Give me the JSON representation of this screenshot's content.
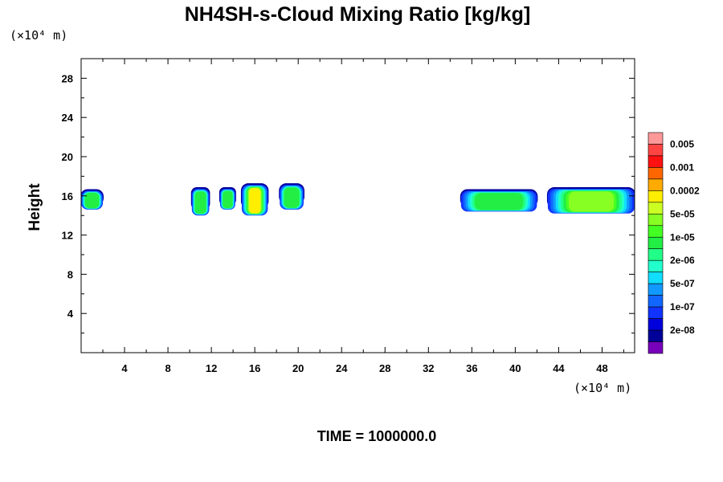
{
  "chart_data": {
    "type": "heatmap",
    "title": "NH4SH-s-Cloud Mixing Ratio [kg/kg]",
    "ylabel": "Height",
    "x_unit_label": "(×10⁴ m)",
    "y_unit_label": "(×10⁴ m)",
    "xlim": [
      0,
      51
    ],
    "ylim": [
      0,
      30
    ],
    "xticks": [
      4,
      8,
      12,
      16,
      20,
      24,
      28,
      32,
      36,
      40,
      44,
      48
    ],
    "yticks": [
      4,
      8,
      12,
      16,
      20,
      24,
      28
    ],
    "time_label": "TIME = 1000000.0",
    "colorbar": {
      "labels": [
        "0.005",
        "0.001",
        "0.0002",
        "5e-05",
        "1e-05",
        "2e-06",
        "5e-07",
        "1e-07",
        "2e-08"
      ],
      "colors": [
        "#ff9999",
        "#ff4444",
        "#ff1111",
        "#ff6600",
        "#ffaa00",
        "#ffee00",
        "#ccff22",
        "#88ff22",
        "#44ff22",
        "#22ee44",
        "#22ff88",
        "#22ffcc",
        "#11ddff",
        "#1199ff",
        "#1166ff",
        "#1133ff",
        "#0000dd",
        "#000099",
        "#7700bb"
      ]
    },
    "cloud_regions": [
      {
        "x": [
          0,
          2
        ],
        "y": [
          14.6,
          16.6
        ],
        "peak": "1e-05"
      },
      {
        "x": [
          10.2,
          11.8
        ],
        "y": [
          14.0,
          16.8
        ],
        "peak": "1e-05"
      },
      {
        "x": [
          12.8,
          14.2
        ],
        "y": [
          14.6,
          16.8
        ],
        "peak": "1e-05"
      },
      {
        "x": [
          14.8,
          17.2
        ],
        "y": [
          14.0,
          17.2
        ],
        "peak": "0.0002"
      },
      {
        "x": [
          18.3,
          20.5
        ],
        "y": [
          14.6,
          17.2
        ],
        "peak": "1e-05"
      },
      {
        "x": [
          35.0,
          42.0
        ],
        "y": [
          14.4,
          16.6
        ],
        "peak": "1e-05"
      },
      {
        "x": [
          43.0,
          51.0
        ],
        "y": [
          14.2,
          16.8
        ],
        "peak": "5e-05"
      }
    ]
  }
}
